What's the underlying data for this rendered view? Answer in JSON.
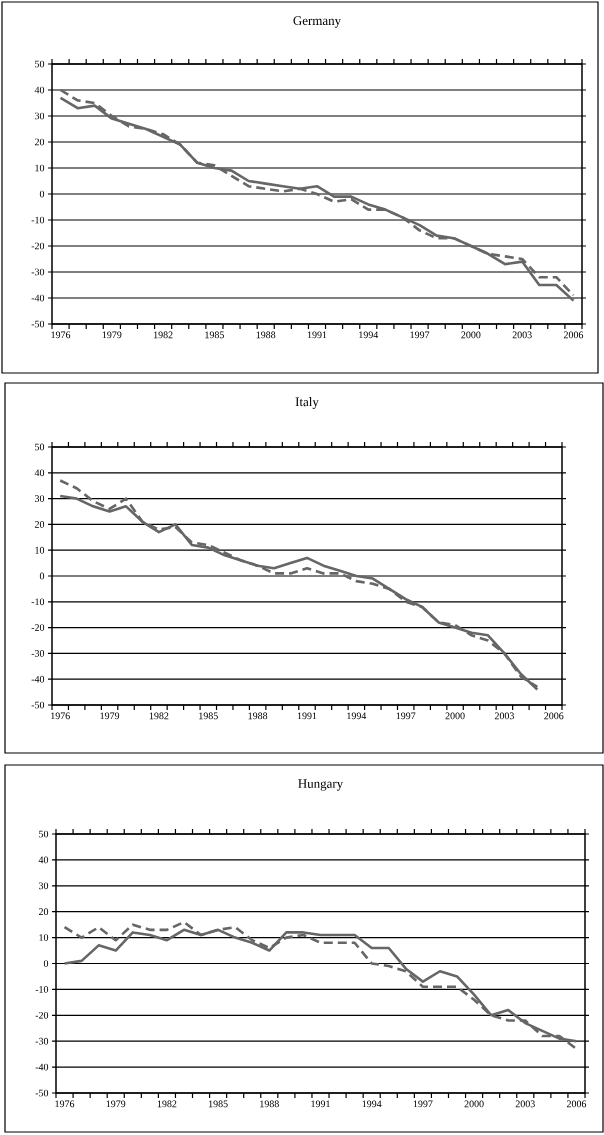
{
  "chart_data": [
    {
      "type": "line",
      "title": "Germany",
      "categories": [
        "1976",
        null,
        null,
        "1979",
        null,
        null,
        "1982",
        null,
        null,
        "1985",
        null,
        null,
        "1988",
        null,
        null,
        "1991",
        null,
        null,
        "1994",
        null,
        null,
        "1997",
        null,
        null,
        "2000",
        null,
        null,
        "2003",
        null,
        null,
        "2006"
      ],
      "series": [
        {
          "color": "#666666",
          "line_style": "solid",
          "values": [
            37,
            33,
            34,
            29,
            27,
            25,
            22,
            19,
            12,
            10,
            9,
            5,
            4,
            3,
            2,
            3,
            -1,
            -1,
            -4,
            -6,
            -9,
            -12,
            -16,
            -17,
            -20,
            -23,
            -27,
            -26,
            -35,
            -35,
            -41
          ]
        },
        {
          "color": "#666666",
          "line_style": "dashed",
          "values": [
            40,
            36,
            35,
            30,
            26,
            25,
            23,
            19,
            12,
            11,
            7,
            3,
            2,
            1,
            2,
            0,
            -3,
            -2,
            -6,
            -6,
            -9,
            -14,
            -17,
            -17,
            -20,
            -23,
            -24,
            -25,
            -32,
            -32,
            -39
          ]
        }
      ],
      "ylim": [
        -50,
        50
      ],
      "yticks": [
        -50,
        -40,
        -30,
        -20,
        -10,
        0,
        10,
        20,
        30,
        40,
        50
      ],
      "grid": "y"
    },
    {
      "type": "line",
      "title": "Italy",
      "categories": [
        "1976",
        null,
        null,
        "1979",
        null,
        null,
        "1982",
        null,
        null,
        "1985",
        null,
        null,
        "1988",
        null,
        null,
        "1991",
        null,
        null,
        "1994",
        null,
        null,
        "1997",
        null,
        null,
        "2000",
        null,
        null,
        "2003",
        null,
        null,
        "2006"
      ],
      "series": [
        {
          "color": "#666666",
          "line_style": "solid",
          "values": [
            31,
            30,
            27,
            25,
            27,
            21,
            17,
            20,
            12,
            11,
            8,
            6,
            4,
            3,
            5,
            7,
            4,
            2,
            0,
            -1,
            -5,
            -9,
            -12,
            -18,
            -20,
            -22,
            -23,
            -30,
            -38,
            -44,
            null
          ]
        },
        {
          "color": "#666666",
          "line_style": "dashed",
          "values": [
            37,
            34,
            29,
            26,
            30,
            21,
            18,
            19,
            13,
            12,
            9,
            6,
            4,
            1,
            1,
            3,
            1,
            1,
            -2,
            -3,
            -5,
            -10,
            -12,
            -18,
            -19,
            -23,
            -25,
            -30,
            -39,
            -43,
            null
          ]
        }
      ],
      "ylim": [
        -50,
        50
      ],
      "yticks": [
        -50,
        -40,
        -30,
        -20,
        -10,
        0,
        10,
        20,
        30,
        40,
        50
      ],
      "grid": "y"
    },
    {
      "type": "line",
      "title": "Hungary",
      "categories": [
        "1976",
        null,
        null,
        "1979",
        null,
        null,
        "1982",
        null,
        null,
        "1985",
        null,
        null,
        "1988",
        null,
        null,
        "1991",
        null,
        null,
        "1994",
        null,
        null,
        "1997",
        null,
        null,
        "2000",
        null,
        null,
        "2003",
        null,
        null,
        "2006"
      ],
      "series": [
        {
          "color": "#666666",
          "line_style": "solid",
          "values": [
            0,
            1,
            7,
            5,
            12,
            11,
            9,
            13,
            11,
            13,
            10,
            8,
            5,
            12,
            12,
            11,
            11,
            11,
            6,
            6,
            -2,
            -7,
            -3,
            -5,
            -12,
            -20,
            -18,
            -23,
            -26,
            -29,
            -30
          ]
        },
        {
          "color": "#666666",
          "line_style": "dashed",
          "values": [
            14,
            10,
            14,
            9,
            15,
            13,
            13,
            16,
            11,
            13,
            14,
            9,
            6,
            10,
            11,
            8,
            8,
            8,
            0,
            -1,
            -3,
            -9,
            -9,
            -9,
            -14,
            -20,
            -22,
            -22,
            -28,
            -28,
            -33
          ]
        }
      ],
      "ylim": [
        -50,
        50
      ],
      "yticks": [
        -50,
        -40,
        -30,
        -20,
        -10,
        0,
        10,
        20,
        30,
        40,
        50
      ],
      "grid": "y"
    }
  ]
}
